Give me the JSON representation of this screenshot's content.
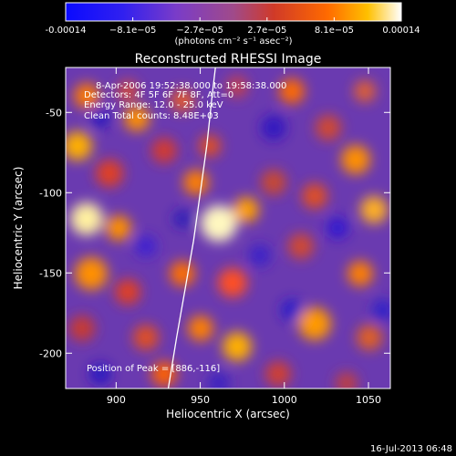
{
  "chart_data": {
    "type": "heatmap",
    "title": "Reconstructed RHESSI Image",
    "xlabel": "Heliocentric X (arcsec)",
    "ylabel": "Heliocentric Y (arcsec)",
    "xlim": [
      870,
      1063
    ],
    "ylim": [
      -222,
      -22
    ],
    "x_ticks": [
      900,
      950,
      1000,
      1050
    ],
    "y_ticks": [
      -50,
      -100,
      -150,
      -200
    ],
    "colorbar": {
      "ticks": [
        "-0.00014",
        "−8.1e−05",
        "−2.7e−05",
        "2.7e−05",
        "8.1e−05",
        "0.00014"
      ],
      "units": "(photons cm⁻² s⁻¹ asec⁻²)",
      "vmin": -0.00014,
      "vmax": 0.00014
    },
    "annotations": [
      "8-Apr-2006 19:52:38.000 to 19:58:38.000",
      "Detectors: 4F 5F 6F 7F 8F, Att=0",
      "Energy Range: 12.0 - 25.0 keV",
      "Clean     Total counts: 8.48E+03",
      "Position of Peak = [886,-116]"
    ],
    "peak_position": [
      886,
      -116
    ],
    "limb_curve": {
      "x": [
        931,
        936,
        941,
        946,
        950,
        954,
        957,
        959
      ],
      "y": [
        -222,
        -190,
        -160,
        -130,
        -100,
        -70,
        -40,
        -22
      ]
    }
  },
  "footer": {
    "timestamp": "16-Jul-2013 06:48"
  }
}
